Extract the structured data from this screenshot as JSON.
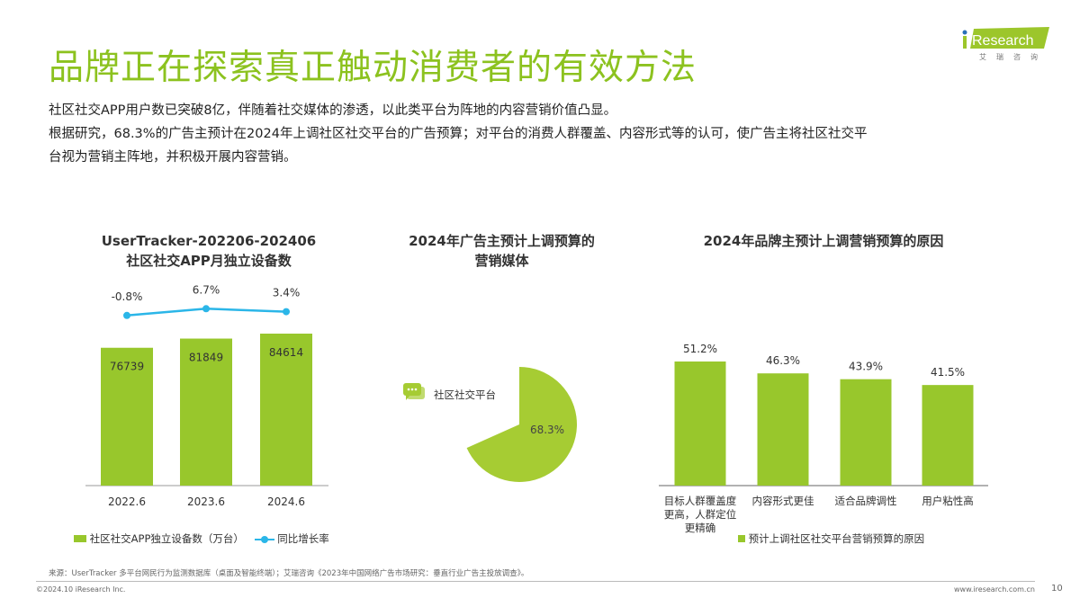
{
  "header": {
    "title": "品牌正在探索真正触动消费者的有效方法",
    "logo_text": "iResearch",
    "logo_sub": "艾 瑞 咨 询"
  },
  "body": [
    "社区社交APP用户数已突破8亿，伴随着社交媒体的渗透，以此类平台为阵地的内容营销价值凸显。",
    "根据研究，68.3%的广告主预计在2024年上调社区社交平台的广告预算；对平台的消费人群覆盖、内容形式等的认可，使广告主将社区社交平",
    "台视为营销主阵地，并积极开展内容营销。"
  ],
  "chart_data": [
    {
      "type": "bar",
      "title": [
        "UserTracker-202206-202406",
        "社区社交APP月独立设备数"
      ],
      "categories": [
        "2022.6",
        "2023.6",
        "2024.6"
      ],
      "series": [
        {
          "name": "社区社交APP独立设备数（万台）",
          "values": [
            76739,
            81849,
            84614
          ],
          "labels": [
            "76739",
            "81849",
            "84614"
          ]
        },
        {
          "name": "同比增长率",
          "type": "line",
          "values": [
            -0.8,
            6.7,
            3.4
          ],
          "labels": [
            "-0.8%",
            "6.7%",
            "3.4%"
          ]
        }
      ],
      "colors": {
        "bar": "#98c72c",
        "line": "#2bb6e8"
      }
    },
    {
      "type": "pie",
      "title": [
        "2024年广告主预计上调预算的",
        "营销媒体"
      ],
      "categories": [
        "社区社交平台"
      ],
      "values": [
        68.3
      ],
      "labels": [
        "68.3%"
      ],
      "colors": {
        "slice": "#a6cc33"
      }
    },
    {
      "type": "bar",
      "title": [
        "2024年品牌主预计上调营销预算的原因"
      ],
      "categories": [
        [
          "目标人群覆盖度",
          "更高，人群定位",
          "更精确"
        ],
        [
          "内容形式更佳"
        ],
        [
          "适合品牌调性"
        ],
        [
          "用户粘性高"
        ]
      ],
      "values": [
        51.2,
        46.3,
        43.9,
        41.5
      ],
      "labels": [
        "51.2%",
        "46.3%",
        "43.9%",
        "41.5%"
      ],
      "legend": "预计上调社区社交平台营销预算的原因",
      "colors": {
        "bar": "#98c72c"
      }
    }
  ],
  "footer": {
    "source": "来源：UserTracker 多平台网民行为监测数据库（桌面及智能终端）；艾瑞咨询《2023年中国网络广告市场研究：垂直行业广告主投放调查》。",
    "copyright": "©2024.10 iResearch Inc.",
    "url": "www.iresearch.com.cn",
    "page": "10"
  }
}
